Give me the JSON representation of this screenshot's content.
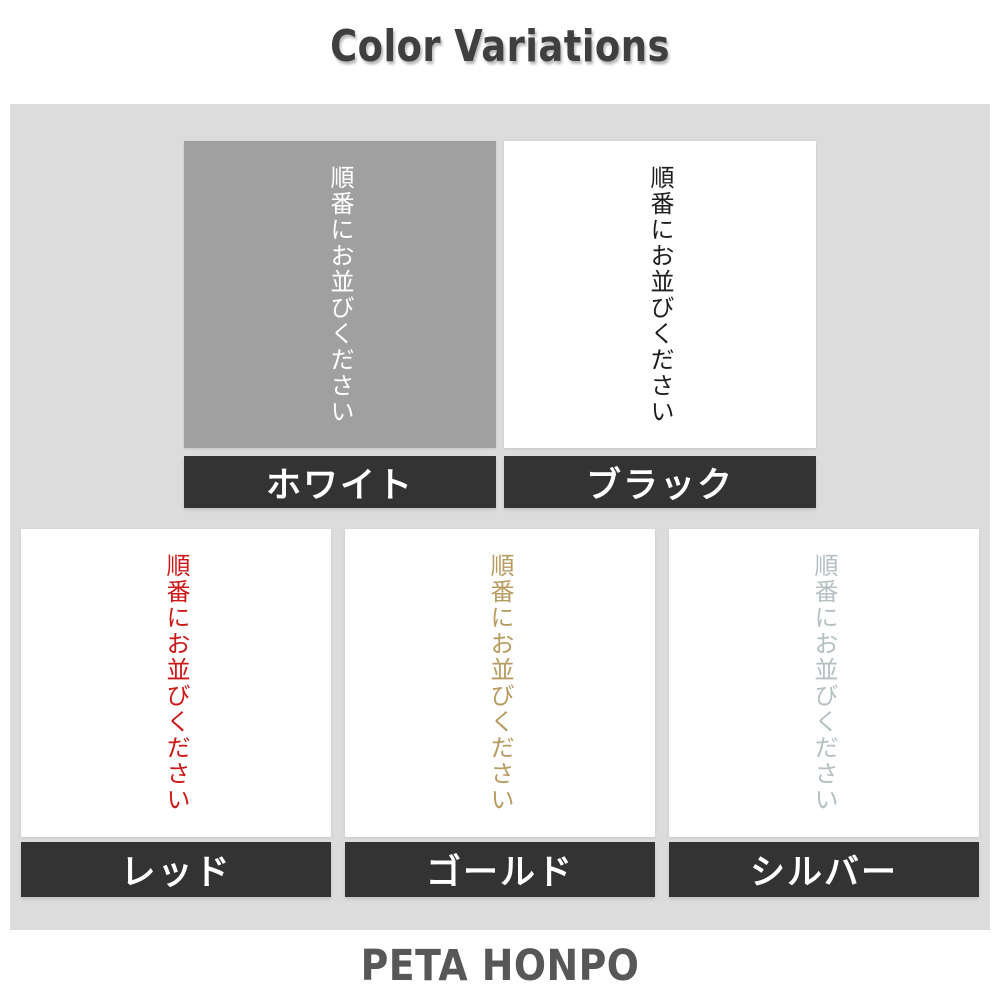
{
  "page": {
    "title": "Color Variations",
    "footer": "PETA HONPO"
  },
  "sample_text": "順番にお並びください",
  "colors": {
    "panel_bg": "#dcdcdc",
    "bar_bg": "#333333",
    "bar_text": "#ffffff",
    "title_text": "#3f3f3f",
    "footer_text": "#575757"
  },
  "variations": [
    {
      "name": "white",
      "label": "ホワイト",
      "text_color": "#ffffff",
      "swatch_bg": "#a0a0a0",
      "row": 1
    },
    {
      "name": "black",
      "label": "ブラック",
      "text_color": "#1e1e1e",
      "swatch_bg": "#ffffff",
      "row": 1
    },
    {
      "name": "red",
      "label": "レッド",
      "text_color": "#ce1818",
      "swatch_bg": "#ffffff",
      "row": 2
    },
    {
      "name": "gold",
      "label": "ゴールド",
      "text_color": "#b89b60",
      "swatch_bg": "#ffffff",
      "row": 2
    },
    {
      "name": "silver",
      "label": "シルバー",
      "text_color": "#b4c0c2",
      "swatch_bg": "#ffffff",
      "row": 2
    }
  ]
}
